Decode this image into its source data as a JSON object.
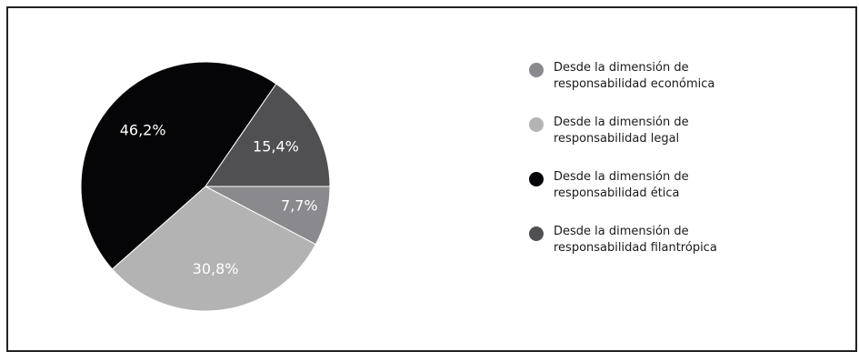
{
  "chart_data": {
    "type": "pie",
    "categories": [
      "Desde la dimensión de responsabilidad económica",
      "Desde la dimensión de responsabilidad legal",
      "Desde la dimensión de responsabilidad ética",
      "Desde la dimensión de responsabilidad filantrópica"
    ],
    "values": [
      7.7,
      30.8,
      46.2,
      15.4
    ],
    "value_labels": [
      "7,7%",
      "30,8%",
      "46,2%",
      "15,4%"
    ],
    "colors": [
      "#8a8a8e",
      "#b3b3b3",
      "#050507",
      "#505053"
    ],
    "legend_position": "right"
  }
}
